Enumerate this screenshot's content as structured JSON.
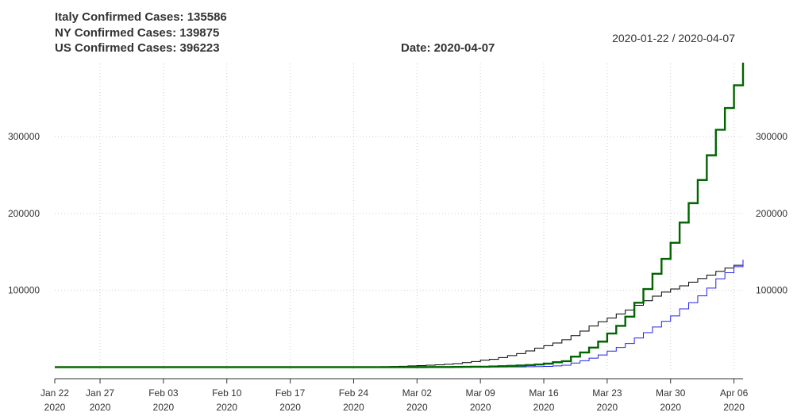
{
  "header": {
    "lines": [
      "Italy Confirmed Cases: 135586",
      "NY Confirmed Cases: 139875",
      "US Confirmed Cases: 396223"
    ],
    "date_label": "Date: 2020-04-07",
    "range_label": "2020-01-22 / 2020-04-07"
  },
  "chart_data": {
    "type": "line",
    "step": true,
    "x_start": "2020-01-22",
    "x_end": "2020-04-07",
    "ylim": [
      -15000,
      395000
    ],
    "grid": true,
    "x_ticks": [
      {
        "date": "2020-01-22",
        "label": "Jan 22",
        "year": "2020"
      },
      {
        "date": "2020-01-27",
        "label": "Jan 27",
        "year": "2020"
      },
      {
        "date": "2020-02-03",
        "label": "Feb 03",
        "year": "2020"
      },
      {
        "date": "2020-02-10",
        "label": "Feb 10",
        "year": "2020"
      },
      {
        "date": "2020-02-17",
        "label": "Feb 17",
        "year": "2020"
      },
      {
        "date": "2020-02-24",
        "label": "Feb 24",
        "year": "2020"
      },
      {
        "date": "2020-03-02",
        "label": "Mar 02",
        "year": "2020"
      },
      {
        "date": "2020-03-09",
        "label": "Mar 09",
        "year": "2020"
      },
      {
        "date": "2020-03-16",
        "label": "Mar 16",
        "year": "2020"
      },
      {
        "date": "2020-03-23",
        "label": "Mar 23",
        "year": "2020"
      },
      {
        "date": "2020-03-30",
        "label": "Mar 30",
        "year": "2020"
      },
      {
        "date": "2020-04-06",
        "label": "Apr 06",
        "year": "2020"
      }
    ],
    "y_ticks": [
      {
        "value": 100000,
        "label": "100000"
      },
      {
        "value": 200000,
        "label": "200000"
      },
      {
        "value": 300000,
        "label": "300000"
      }
    ],
    "series": [
      {
        "name": "Italy",
        "color": "#000000",
        "width": 1,
        "points": [
          [
            "2020-01-22",
            0
          ],
          [
            "2020-01-31",
            2
          ],
          [
            "2020-02-20",
            3
          ],
          [
            "2020-02-21",
            20
          ],
          [
            "2020-02-22",
            62
          ],
          [
            "2020-02-23",
            155
          ],
          [
            "2020-02-24",
            229
          ],
          [
            "2020-02-25",
            322
          ],
          [
            "2020-02-26",
            453
          ],
          [
            "2020-02-27",
            655
          ],
          [
            "2020-02-28",
            888
          ],
          [
            "2020-02-29",
            1128
          ],
          [
            "2020-03-01",
            1694
          ],
          [
            "2020-03-02",
            2036
          ],
          [
            "2020-03-03",
            2502
          ],
          [
            "2020-03-04",
            3089
          ],
          [
            "2020-03-05",
            3858
          ],
          [
            "2020-03-06",
            4636
          ],
          [
            "2020-03-07",
            5883
          ],
          [
            "2020-03-08",
            7375
          ],
          [
            "2020-03-09",
            9172
          ],
          [
            "2020-03-10",
            10149
          ],
          [
            "2020-03-11",
            12462
          ],
          [
            "2020-03-12",
            15113
          ],
          [
            "2020-03-13",
            17660
          ],
          [
            "2020-03-14",
            21157
          ],
          [
            "2020-03-15",
            24747
          ],
          [
            "2020-03-16",
            27980
          ],
          [
            "2020-03-17",
            31506
          ],
          [
            "2020-03-18",
            35713
          ],
          [
            "2020-03-19",
            41035
          ],
          [
            "2020-03-20",
            47021
          ],
          [
            "2020-03-21",
            53578
          ],
          [
            "2020-03-22",
            59138
          ],
          [
            "2020-03-23",
            63927
          ],
          [
            "2020-03-24",
            69176
          ],
          [
            "2020-03-25",
            74386
          ],
          [
            "2020-03-26",
            80589
          ],
          [
            "2020-03-27",
            86498
          ],
          [
            "2020-03-28",
            92472
          ],
          [
            "2020-03-29",
            97689
          ],
          [
            "2020-03-30",
            101739
          ],
          [
            "2020-03-31",
            105792
          ],
          [
            "2020-04-01",
            110574
          ],
          [
            "2020-04-02",
            115242
          ],
          [
            "2020-04-03",
            119827
          ],
          [
            "2020-04-04",
            124632
          ],
          [
            "2020-04-05",
            128948
          ],
          [
            "2020-04-06",
            132547
          ],
          [
            "2020-04-07",
            135586
          ]
        ]
      },
      {
        "name": "NY",
        "color": "#2222ee",
        "width": 1,
        "points": [
          [
            "2020-01-22",
            0
          ],
          [
            "2020-03-01",
            1
          ],
          [
            "2020-03-02",
            1
          ],
          [
            "2020-03-03",
            2
          ],
          [
            "2020-03-04",
            11
          ],
          [
            "2020-03-05",
            23
          ],
          [
            "2020-03-06",
            31
          ],
          [
            "2020-03-07",
            76
          ],
          [
            "2020-03-08",
            106
          ],
          [
            "2020-03-09",
            142
          ],
          [
            "2020-03-10",
            173
          ],
          [
            "2020-03-11",
            217
          ],
          [
            "2020-03-12",
            326
          ],
          [
            "2020-03-13",
            421
          ],
          [
            "2020-03-14",
            610
          ],
          [
            "2020-03-15",
            732
          ],
          [
            "2020-03-16",
            950
          ],
          [
            "2020-03-17",
            1700
          ],
          [
            "2020-03-18",
            2500
          ],
          [
            "2020-03-19",
            5365
          ],
          [
            "2020-03-20",
            8310
          ],
          [
            "2020-03-21",
            11710
          ],
          [
            "2020-03-22",
            15793
          ],
          [
            "2020-03-23",
            20884
          ],
          [
            "2020-03-24",
            25681
          ],
          [
            "2020-03-25",
            30841
          ],
          [
            "2020-03-26",
            37877
          ],
          [
            "2020-03-27",
            44876
          ],
          [
            "2020-03-28",
            52318
          ],
          [
            "2020-03-29",
            59648
          ],
          [
            "2020-03-30",
            66663
          ],
          [
            "2020-03-31",
            75833
          ],
          [
            "2020-04-01",
            83889
          ],
          [
            "2020-04-02",
            92770
          ],
          [
            "2020-04-03",
            102870
          ],
          [
            "2020-04-04",
            114996
          ],
          [
            "2020-04-05",
            122911
          ],
          [
            "2020-04-06",
            130703
          ],
          [
            "2020-04-07",
            139875
          ]
        ]
      },
      {
        "name": "US",
        "color": "#006400",
        "width": 2.4,
        "points": [
          [
            "2020-01-22",
            1
          ],
          [
            "2020-02-01",
            8
          ],
          [
            "2020-02-15",
            15
          ],
          [
            "2020-02-24",
            51
          ],
          [
            "2020-02-27",
            60
          ],
          [
            "2020-02-29",
            68
          ],
          [
            "2020-03-01",
            74
          ],
          [
            "2020-03-02",
            98
          ],
          [
            "2020-03-03",
            118
          ],
          [
            "2020-03-04",
            149
          ],
          [
            "2020-03-05",
            217
          ],
          [
            "2020-03-06",
            262
          ],
          [
            "2020-03-07",
            402
          ],
          [
            "2020-03-08",
            518
          ],
          [
            "2020-03-09",
            583
          ],
          [
            "2020-03-10",
            959
          ],
          [
            "2020-03-11",
            1281
          ],
          [
            "2020-03-12",
            1663
          ],
          [
            "2020-03-13",
            2179
          ],
          [
            "2020-03-14",
            2726
          ],
          [
            "2020-03-15",
            3499
          ],
          [
            "2020-03-16",
            4632
          ],
          [
            "2020-03-17",
            6421
          ],
          [
            "2020-03-18",
            7786
          ],
          [
            "2020-03-19",
            13680
          ],
          [
            "2020-03-20",
            19101
          ],
          [
            "2020-03-21",
            25493
          ],
          [
            "2020-03-22",
            33276
          ],
          [
            "2020-03-23",
            43847
          ],
          [
            "2020-03-24",
            53740
          ],
          [
            "2020-03-25",
            65778
          ],
          [
            "2020-03-26",
            83836
          ],
          [
            "2020-03-27",
            101657
          ],
          [
            "2020-03-28",
            121478
          ],
          [
            "2020-03-29",
            140886
          ],
          [
            "2020-03-30",
            161807
          ],
          [
            "2020-03-31",
            188172
          ],
          [
            "2020-04-01",
            213372
          ],
          [
            "2020-04-02",
            243453
          ],
          [
            "2020-04-03",
            275586
          ],
          [
            "2020-04-04",
            308850
          ],
          [
            "2020-04-05",
            337072
          ],
          [
            "2020-04-06",
            366667
          ],
          [
            "2020-04-07",
            396223
          ]
        ]
      }
    ]
  }
}
